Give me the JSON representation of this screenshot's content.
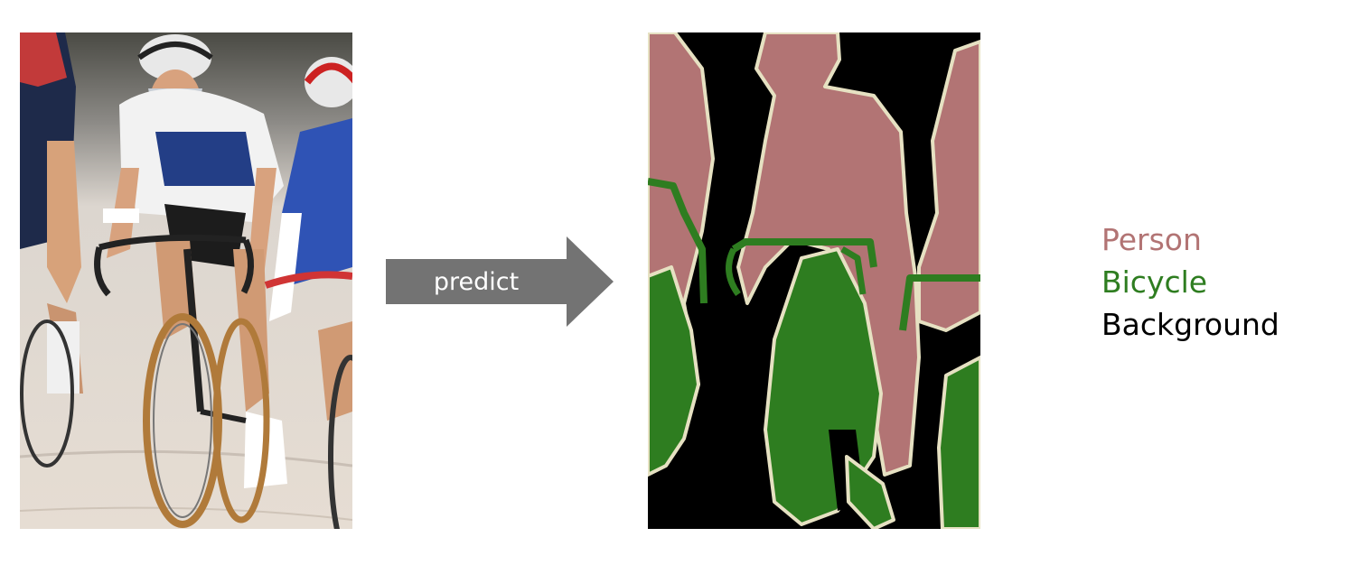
{
  "arrow": {
    "label": "predict",
    "color": "#737373"
  },
  "legend": [
    {
      "label": "Person",
      "color": "#b27474"
    },
    {
      "label": "Bicycle",
      "color": "#2e7d20"
    },
    {
      "label": "Background",
      "color": "#000000"
    }
  ],
  "colors": {
    "person": "#b27474",
    "bicycle": "#2e7d20",
    "background": "#000000",
    "boundary": "#e6e1c2"
  }
}
